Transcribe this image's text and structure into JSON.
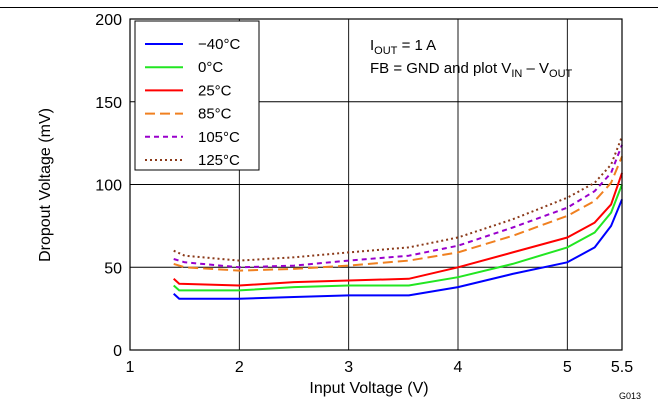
{
  "chart_data": {
    "type": "line",
    "title": "",
    "xlabel": "Input Voltage (V)",
    "ylabel": "Dropout Voltage (mV)",
    "xlim": [
      1,
      5.5
    ],
    "ylim": [
      0,
      200
    ],
    "xticks": [
      1,
      2,
      3,
      4,
      5,
      5.5
    ],
    "xtick_labels": [
      "1",
      "2",
      "3",
      "4",
      "5",
      "5.5"
    ],
    "yticks": [
      0,
      50,
      100,
      150,
      200
    ],
    "ytick_labels": [
      "0",
      "50",
      "100",
      "150",
      "200"
    ],
    "grid": true,
    "legend_position": "top-left",
    "annotation": {
      "line1_prefix": "I",
      "line1_sub": "OUT",
      "line1_rest": " = 1 A",
      "line2_prefix": "FB = GND and plot V",
      "line2_sub1": "IN",
      "line2_mid": " – V",
      "line2_sub2": "OUT"
    },
    "figure_id": "G013",
    "series": [
      {
        "name": "−40°C",
        "color": "#0000ff",
        "dash": "solid",
        "x": [
          1.4,
          1.45,
          2.0,
          2.5,
          3.0,
          3.55,
          4.0,
          4.5,
          5.0,
          5.25,
          5.4,
          5.5
        ],
        "y": [
          34,
          31,
          31,
          32,
          33,
          33,
          38,
          46,
          53,
          62,
          75,
          91
        ]
      },
      {
        "name": "0°C",
        "color": "#22e622",
        "dash": "solid",
        "x": [
          1.4,
          1.45,
          2.0,
          2.5,
          3.0,
          3.55,
          4.0,
          4.5,
          5.0,
          5.25,
          5.4,
          5.5
        ],
        "y": [
          39,
          36,
          36,
          38,
          39,
          39,
          44,
          52,
          62,
          71,
          83,
          100
        ]
      },
      {
        "name": "25°C",
        "color": "#ff0000",
        "dash": "solid",
        "x": [
          1.4,
          1.45,
          2.0,
          2.5,
          3.0,
          3.55,
          4.0,
          4.5,
          5.0,
          5.25,
          5.4,
          5.5
        ],
        "y": [
          43,
          40,
          39,
          41,
          42,
          43,
          50,
          59,
          68,
          77,
          88,
          107
        ]
      },
      {
        "name": "85°C",
        "color": "#f08020",
        "dash": "long",
        "x": [
          1.4,
          1.5,
          2.0,
          2.5,
          3.0,
          3.55,
          4.0,
          4.5,
          5.0,
          5.25,
          5.4,
          5.5
        ],
        "y": [
          52,
          50,
          48,
          49,
          51,
          54,
          59,
          69,
          81,
          90,
          101,
          117
        ]
      },
      {
        "name": "105°C",
        "color": "#9900cc",
        "dash": "short",
        "x": [
          1.4,
          1.5,
          2.0,
          2.5,
          3.0,
          3.55,
          4.0,
          4.5,
          5.0,
          5.25,
          5.4,
          5.5
        ],
        "y": [
          55,
          53,
          50,
          51,
          54,
          57,
          63,
          74,
          86,
          96,
          107,
          124
        ]
      },
      {
        "name": "125°C",
        "color": "#8b3a1a",
        "dash": "dot",
        "x": [
          1.4,
          1.5,
          2.0,
          2.5,
          3.0,
          3.55,
          4.0,
          4.5,
          5.0,
          5.25,
          5.4,
          5.5
        ],
        "y": [
          60,
          57,
          54,
          56,
          59,
          62,
          68,
          79,
          92,
          101,
          112,
          129
        ]
      }
    ]
  }
}
